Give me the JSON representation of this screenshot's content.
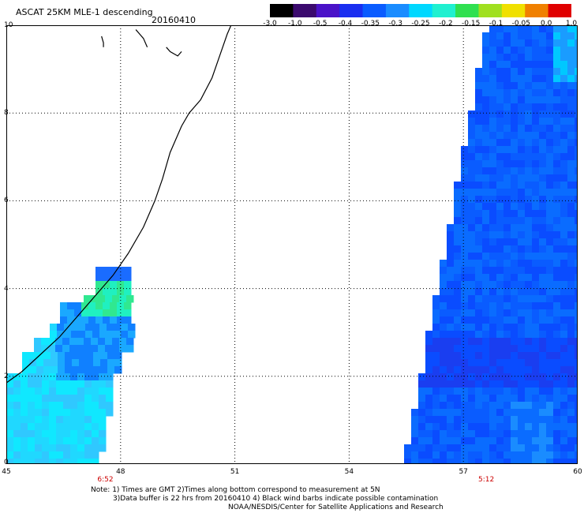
{
  "header": {
    "title": "ASCAT 25KM MLE-1 descending",
    "date": "20160410"
  },
  "colorbar": {
    "labels": [
      "-3.0",
      "-1.0",
      "-0.5",
      "-0.4",
      "-0.35",
      "-0.3",
      "-0.25",
      "-0.2",
      "-0.15",
      "-0.1",
      "-0.05",
      "0.0",
      "1.0"
    ],
    "colors": [
      "#000000",
      "#3b0a6e",
      "#4a12c8",
      "#1a2ef0",
      "#0a5cff",
      "#1a8cff",
      "#00d8ff",
      "#20f0d0",
      "#30e050",
      "#a0e020",
      "#f0e000",
      "#f08000",
      "#e00000"
    ]
  },
  "map": {
    "x_range": [
      45,
      60
    ],
    "y_range": [
      0,
      10
    ],
    "x_ticks": [
      "45",
      "48",
      "51",
      "54",
      "57",
      "60"
    ],
    "y_ticks": [
      "0",
      "2",
      "4",
      "6",
      "8",
      "10"
    ],
    "time_labels": [
      {
        "text": "6:52",
        "lon": 47.6
      },
      {
        "text": "5:12",
        "lon": 57.6
      }
    ],
    "swath_colors": {
      "west": [
        "#10e8ff",
        "#20d8ff",
        "#30c8ff",
        "#1aa8ff",
        "#1080ff"
      ],
      "east": [
        "#0a6cff",
        "#0a5cff",
        "#0a4cff",
        "#1a3ef0"
      ]
    }
  },
  "notes": {
    "line1": "Note: 1) Times are GMT 2)Times along bottom correspond to measurement at 5N",
    "line2": "3)Data buffer is 22 hrs from 20160410 4) Black wind barbs indicate possible contamination",
    "line3": "NOAA/NESDIS/Center for Satellite Applications and Research"
  }
}
